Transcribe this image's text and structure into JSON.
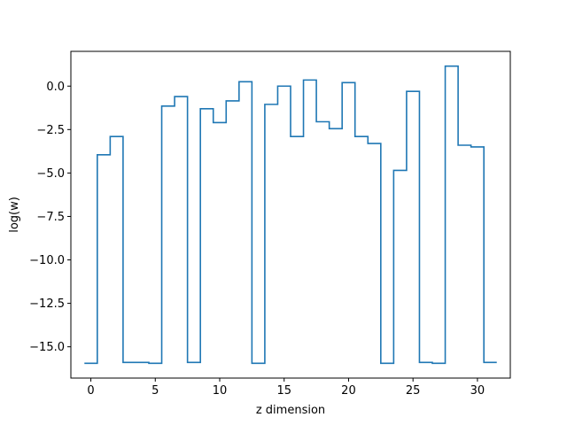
{
  "chart_data": {
    "type": "line",
    "drawstyle": "steps-mid",
    "title": "",
    "xlabel": "z dimension",
    "ylabel": "log(w)",
    "xlim": [
      -1.55,
      32.55
    ],
    "ylim": [
      -16.8,
      2.0
    ],
    "xticks": [
      0,
      5,
      10,
      15,
      20,
      25,
      30
    ],
    "xtick_labels": [
      "0",
      "5",
      "10",
      "15",
      "20",
      "25",
      "30"
    ],
    "yticks": [
      0.0,
      -2.5,
      -5.0,
      -7.5,
      -10.0,
      -12.5,
      -15.0
    ],
    "ytick_labels": [
      "0.0",
      "−2.5",
      "−5.0",
      "−7.5",
      "−10.0",
      "−12.5",
      "−15.0"
    ],
    "grid": false,
    "legend": "none",
    "line_color": "#1f77b4",
    "series": [
      {
        "x": [
          0,
          1,
          2,
          3,
          4,
          5,
          6,
          7,
          8,
          9,
          10,
          11,
          12,
          13,
          14,
          15,
          16,
          17,
          18,
          19,
          20,
          21,
          22,
          23,
          24,
          25,
          26,
          27,
          28,
          29,
          30,
          31
        ],
        "values": [
          -15.95,
          -3.95,
          -2.9,
          -15.9,
          -15.9,
          -15.95,
          -1.15,
          -0.6,
          -15.9,
          -1.3,
          -2.1,
          -0.85,
          0.25,
          -15.95,
          -1.05,
          0.0,
          -2.9,
          0.35,
          -2.05,
          -2.45,
          0.2,
          -2.9,
          -3.3,
          -15.95,
          -4.85,
          -0.3,
          -15.9,
          -15.95,
          1.15,
          -3.4,
          -3.5,
          -15.9
        ]
      }
    ]
  }
}
